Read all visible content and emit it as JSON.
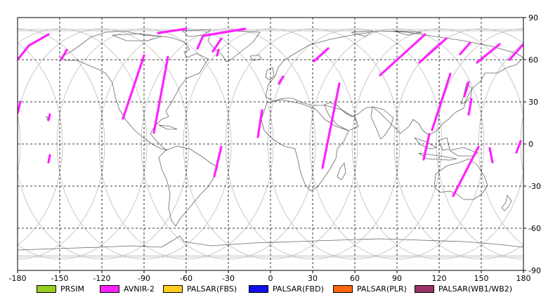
{
  "map": {
    "x_ticks": [
      "-180",
      "-150",
      "-120",
      "-90",
      "-60",
      "-30",
      "0",
      "30",
      "60",
      "90",
      "120",
      "150",
      "180"
    ],
    "y_ticks": [
      "90",
      "60",
      "30",
      "0",
      "-30",
      "-60",
      "-90"
    ],
    "x_range": [
      -180,
      180
    ],
    "y_range": [
      -90,
      90
    ],
    "grid": true,
    "colors": {
      "frame": "#000000",
      "coast": "#666666",
      "orbit": "#bbbbbb",
      "grid": "#000000"
    }
  },
  "legend": [
    {
      "label": "PRSIM",
      "color": "#99cc22"
    },
    {
      "label": "AVNIR-2",
      "color": "#ff22ff"
    },
    {
      "label": "PALSAR(FBS)",
      "color": "#ffcc22"
    },
    {
      "label": "PALSAR(FBD)",
      "color": "#1111ee"
    },
    {
      "label": "PALSAR(PLR)",
      "color": "#ff6611"
    },
    {
      "label": "PALSAR(WB1/WB2)",
      "color": "#993366"
    }
  ],
  "chart_data": {
    "type": "map",
    "xlim": [
      -180,
      180
    ],
    "ylim": [
      -90,
      90
    ],
    "xticks": [
      -180,
      -150,
      -120,
      -90,
      -60,
      -30,
      0,
      30,
      60,
      90,
      120,
      150,
      180
    ],
    "yticks": [
      90,
      60,
      30,
      0,
      -30,
      -60,
      -90
    ],
    "grid": true,
    "legend_position": "bottom",
    "swaths": [
      {
        "sensor": "AVNIR-2",
        "path": [
          [
            -158,
            78
          ],
          [
            -172,
            70
          ],
          [
            -180,
            60
          ]
        ]
      },
      {
        "sensor": "AVNIR-2",
        "path": [
          [
            -60,
            82
          ],
          [
            -80,
            79
          ]
        ]
      },
      {
        "sensor": "AVNIR-2",
        "path": [
          [
            -18,
            82
          ],
          [
            -48,
            77
          ],
          [
            -52,
            68
          ]
        ]
      },
      {
        "sensor": "AVNIR-2",
        "path": [
          [
            -145,
            67
          ],
          [
            -149,
            60
          ]
        ]
      },
      {
        "sensor": "AVNIR-2",
        "path": [
          [
            -178,
            30
          ],
          [
            -180,
            22
          ]
        ]
      },
      {
        "sensor": "AVNIR-2",
        "path": [
          [
            -157,
            21
          ],
          [
            -158,
            17
          ]
        ]
      },
      {
        "sensor": "AVNIR-2",
        "path": [
          [
            -157,
            -8
          ],
          [
            -158,
            -13
          ]
        ]
      },
      {
        "sensor": "AVNIR-2",
        "path": [
          [
            -90,
            63
          ],
          [
            -105,
            18
          ]
        ]
      },
      {
        "sensor": "AVNIR-2",
        "path": [
          [
            -73,
            62
          ],
          [
            -83,
            8
          ]
        ]
      },
      {
        "sensor": "AVNIR-2",
        "path": [
          [
            -35,
            75
          ],
          [
            -41,
            66
          ]
        ]
      },
      {
        "sensor": "AVNIR-2",
        "path": [
          [
            -37,
            67
          ],
          [
            -38,
            63
          ]
        ]
      },
      {
        "sensor": "AVNIR-2",
        "path": [
          [
            -35,
            -2
          ],
          [
            -40,
            -23
          ]
        ]
      },
      {
        "sensor": "AVNIR-2",
        "path": [
          [
            -6,
            24
          ],
          [
            -9,
            5
          ]
        ]
      },
      {
        "sensor": "AVNIR-2",
        "path": [
          [
            9,
            48
          ],
          [
            6,
            43
          ]
        ]
      },
      {
        "sensor": "AVNIR-2",
        "path": [
          [
            41,
            68
          ],
          [
            31,
            59
          ]
        ]
      },
      {
        "sensor": "AVNIR-2",
        "path": [
          [
            49,
            43
          ],
          [
            37,
            -17
          ]
        ]
      },
      {
        "sensor": "AVNIR-2",
        "path": [
          [
            110,
            78
          ],
          [
            78,
            49
          ]
        ]
      },
      {
        "sensor": "AVNIR-2",
        "path": [
          [
            125,
            75
          ],
          [
            106,
            58
          ]
        ]
      },
      {
        "sensor": "AVNIR-2",
        "path": [
          [
            142,
            72
          ],
          [
            135,
            64
          ]
        ]
      },
      {
        "sensor": "AVNIR-2",
        "path": [
          [
            163,
            71
          ],
          [
            147,
            58
          ]
        ]
      },
      {
        "sensor": "AVNIR-2",
        "path": [
          [
            180,
            71
          ],
          [
            170,
            60
          ]
        ]
      },
      {
        "sensor": "AVNIR-2",
        "path": [
          [
            128,
            50
          ],
          [
            115,
            10
          ]
        ]
      },
      {
        "sensor": "AVNIR-2",
        "path": [
          [
            141,
            44
          ],
          [
            138,
            34
          ]
        ]
      },
      {
        "sensor": "AVNIR-2",
        "path": [
          [
            143,
            32
          ],
          [
            141,
            21
          ]
        ]
      },
      {
        "sensor": "AVNIR-2",
        "path": [
          [
            113,
            7
          ],
          [
            109,
            -11
          ]
        ]
      },
      {
        "sensor": "AVNIR-2",
        "path": [
          [
            148,
            -2
          ],
          [
            130,
            -37
          ]
        ]
      },
      {
        "sensor": "AVNIR-2",
        "path": [
          [
            156,
            -3
          ],
          [
            158,
            -13
          ]
        ]
      },
      {
        "sensor": "AVNIR-2",
        "path": [
          [
            178,
            2
          ],
          [
            175,
            -6
          ]
        ]
      }
    ]
  }
}
